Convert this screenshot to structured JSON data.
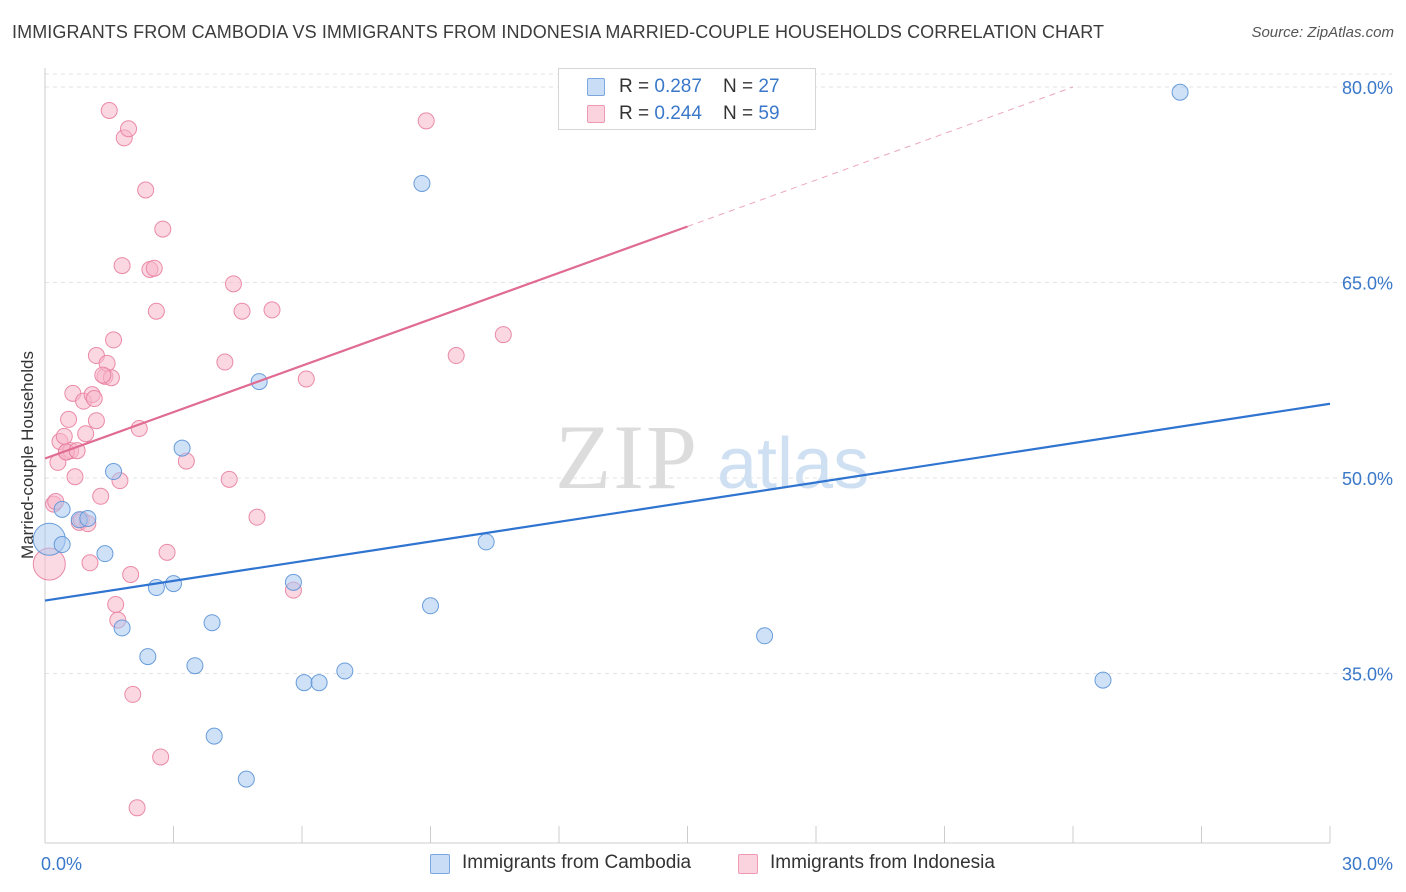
{
  "header": {
    "title": "IMMIGRANTS FROM CAMBODIA VS IMMIGRANTS FROM INDONESIA MARRIED-COUPLE HOUSEHOLDS CORRELATION CHART",
    "source": "Source: ZipAtlas.com"
  },
  "watermark": {
    "zip": "ZIP",
    "atlas": "atlas"
  },
  "stats_legend": {
    "rows": [
      {
        "r_label": "R = ",
        "r_value": "0.287",
        "n_label": "N = ",
        "n_value": "27",
        "color": "#a8c8f0"
      },
      {
        "r_label": "R = ",
        "r_value": "0.244",
        "n_label": "N = ",
        "n_value": "59",
        "color": "#f7b6ca"
      }
    ]
  },
  "bottom_legend": {
    "items": [
      {
        "label": "Immigrants from Cambodia",
        "color": "#a8c8f0"
      },
      {
        "label": "Immigrants from Indonesia",
        "color": "#f7b6ca"
      }
    ]
  },
  "colors": {
    "cambodia_fill": "#a8c8f0",
    "cambodia_stroke": "#5b93d6",
    "cambodia_line": "#2f74d0",
    "indonesia_fill": "#f7b6ca",
    "indonesia_stroke": "#e8809f",
    "indonesia_line": "#e06b93",
    "grid": "#e3e3e3",
    "tick_label": "#3a78c9"
  },
  "chart_data": {
    "type": "scatter",
    "title": "IMMIGRANTS FROM CAMBODIA VS IMMIGRANTS FROM INDONESIA MARRIED-COUPLE HOUSEHOLDS CORRELATION CHART",
    "xlabel": "",
    "ylabel": "Married-couple Households",
    "xlim": [
      0,
      30
    ],
    "ylim": [
      22,
      81
    ],
    "x_tick_labels": [
      {
        "value": 0,
        "label": "0.0%"
      },
      {
        "value": 30,
        "label": "30.0%"
      }
    ],
    "y_tick_labels": [
      {
        "value": 35,
        "label": "35.0%"
      },
      {
        "value": 50,
        "label": "50.0%"
      },
      {
        "value": 65,
        "label": "65.0%"
      },
      {
        "value": 80,
        "label": "80.0%"
      }
    ],
    "grid": true,
    "legend_position": "top-center",
    "series": [
      {
        "name": "Immigrants from Cambodia",
        "r": 0.287,
        "n": 27,
        "trend": {
          "x": [
            0,
            30
          ],
          "y": [
            40.6,
            55.7
          ],
          "dash_after": null
        },
        "points": [
          [
            0.1,
            45.3
          ],
          [
            0.4,
            47.6
          ],
          [
            0.8,
            46.8
          ],
          [
            1.4,
            44.2
          ],
          [
            1.6,
            50.5
          ],
          [
            1.8,
            38.5
          ],
          [
            2.6,
            41.6
          ],
          [
            2.4,
            36.3
          ],
          [
            3.0,
            41.9
          ],
          [
            3.2,
            52.3
          ],
          [
            3.5,
            35.6
          ],
          [
            3.9,
            38.9
          ],
          [
            3.95,
            30.2
          ],
          [
            4.7,
            26.9
          ],
          [
            5.0,
            57.4
          ],
          [
            5.8,
            42.0
          ],
          [
            6.05,
            34.3
          ],
          [
            6.4,
            34.3
          ],
          [
            7.0,
            35.2
          ],
          [
            8.8,
            72.6
          ],
          [
            9.0,
            40.2
          ],
          [
            10.3,
            45.1
          ],
          [
            16.8,
            37.9
          ],
          [
            24.7,
            34.5
          ],
          [
            26.5,
            79.6
          ],
          [
            0.4,
            44.9
          ],
          [
            1.0,
            46.9
          ]
        ]
      },
      {
        "name": "Immigrants from Indonesia",
        "r": 0.244,
        "n": 59,
        "trend": {
          "x": [
            0,
            15
          ],
          "y": [
            51.5,
            69.3
          ],
          "dash_x": [
            15,
            24
          ],
          "dash_y": [
            69.3,
            80
          ]
        },
        "points": [
          [
            0.1,
            43.4
          ],
          [
            0.2,
            48.0
          ],
          [
            0.3,
            51.2
          ],
          [
            0.35,
            52.8
          ],
          [
            0.45,
            53.2
          ],
          [
            0.5,
            52.0
          ],
          [
            0.55,
            54.5
          ],
          [
            0.6,
            52.1
          ],
          [
            0.7,
            50.1
          ],
          [
            0.65,
            56.5
          ],
          [
            0.8,
            46.6
          ],
          [
            0.9,
            55.9
          ],
          [
            0.95,
            53.4
          ],
          [
            1.05,
            43.5
          ],
          [
            1.1,
            56.4
          ],
          [
            1.15,
            56.1
          ],
          [
            1.2,
            54.4
          ],
          [
            1.2,
            59.4
          ],
          [
            1.3,
            48.6
          ],
          [
            1.4,
            57.8
          ],
          [
            1.45,
            58.8
          ],
          [
            1.5,
            78.2
          ],
          [
            1.55,
            57.7
          ],
          [
            1.6,
            60.6
          ],
          [
            1.65,
            40.3
          ],
          [
            1.7,
            39.1
          ],
          [
            1.75,
            49.8
          ],
          [
            1.8,
            66.3
          ],
          [
            1.85,
            76.1
          ],
          [
            1.95,
            76.8
          ],
          [
            2.0,
            42.6
          ],
          [
            2.05,
            33.4
          ],
          [
            2.15,
            24.7
          ],
          [
            2.2,
            53.8
          ],
          [
            2.35,
            72.1
          ],
          [
            2.45,
            66.0
          ],
          [
            2.55,
            66.1
          ],
          [
            2.6,
            62.8
          ],
          [
            2.7,
            28.6
          ],
          [
            2.75,
            69.1
          ],
          [
            2.85,
            44.3
          ],
          [
            3.3,
            51.3
          ],
          [
            4.2,
            58.9
          ],
          [
            4.3,
            49.9
          ],
          [
            4.4,
            64.9
          ],
          [
            4.6,
            62.8
          ],
          [
            4.95,
            47.0
          ],
          [
            5.3,
            62.9
          ],
          [
            5.8,
            41.4
          ],
          [
            6.1,
            57.6
          ],
          [
            8.9,
            77.4
          ],
          [
            9.6,
            59.4
          ],
          [
            10.7,
            61.0
          ],
          [
            0.25,
            48.2
          ],
          [
            0.5,
            52.0
          ],
          [
            0.75,
            52.1
          ],
          [
            0.85,
            46.8
          ],
          [
            1.0,
            46.5
          ],
          [
            1.35,
            57.9
          ]
        ]
      }
    ]
  }
}
